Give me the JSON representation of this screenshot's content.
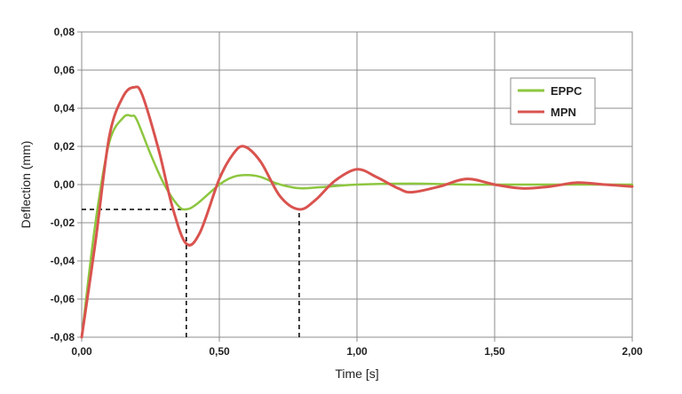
{
  "chart_data": {
    "type": "line",
    "title": "",
    "xlabel": "Time [s]",
    "ylabel": "Deflection (mm)",
    "xlim": [
      0,
      2
    ],
    "ylim": [
      -0.08,
      0.08
    ],
    "x_ticks": [
      "0,00",
      "0,50",
      "1,00",
      "1,50",
      "2,00"
    ],
    "y_ticks": [
      "0,08",
      "0,06",
      "0,04",
      "0,02",
      "0,00",
      "-0,02",
      "-0,04",
      "-0,06",
      "-0,08"
    ],
    "grid": true,
    "legend_position": "top-right",
    "series": [
      {
        "name": "EPPC",
        "color": "#8dc63f",
        "x": [
          0,
          0.05,
          0.1,
          0.15,
          0.18,
          0.2,
          0.25,
          0.3,
          0.35,
          0.38,
          0.42,
          0.5,
          0.55,
          0.6,
          0.65,
          0.7,
          0.75,
          0.8,
          0.9,
          1.0,
          1.2,
          1.4,
          1.6,
          1.8,
          2.0
        ],
        "y": [
          -0.08,
          -0.02,
          0.022,
          0.035,
          0.036,
          0.034,
          0.016,
          0.0,
          -0.011,
          -0.013,
          -0.01,
          0.0,
          0.004,
          0.005,
          0.004,
          0.001,
          -0.001,
          -0.002,
          -0.001,
          0.0,
          0.0005,
          0.0,
          0.0,
          0.0,
          0.0
        ]
      },
      {
        "name": "MPN",
        "color": "#d9534f",
        "x": [
          0,
          0.05,
          0.1,
          0.15,
          0.19,
          0.22,
          0.28,
          0.33,
          0.38,
          0.43,
          0.5,
          0.55,
          0.59,
          0.65,
          0.72,
          0.79,
          0.85,
          0.92,
          1.0,
          1.07,
          1.15,
          1.2,
          1.3,
          1.4,
          1.5,
          1.6,
          1.7,
          1.8,
          1.9,
          2.0
        ],
        "y": [
          -0.08,
          -0.03,
          0.025,
          0.046,
          0.051,
          0.047,
          0.018,
          -0.012,
          -0.031,
          -0.025,
          0.003,
          0.016,
          0.02,
          0.012,
          -0.006,
          -0.013,
          -0.008,
          0.002,
          0.008,
          0.004,
          -0.002,
          -0.004,
          -0.001,
          0.003,
          0.0,
          -0.002,
          -0.001,
          0.001,
          0.0,
          -0.001
        ]
      }
    ],
    "reference_lines": [
      {
        "x_from": 0,
        "x_to": 0.38,
        "y": -0.013,
        "color": "#000000",
        "style": "dashed"
      },
      {
        "x": 0.38,
        "y_from": -0.08,
        "y_to": -0.013,
        "color": "#000000",
        "style": "dashed"
      },
      {
        "x": 0.79,
        "y_from": -0.08,
        "y_to": -0.013,
        "color": "#000000",
        "style": "dashed"
      }
    ]
  }
}
